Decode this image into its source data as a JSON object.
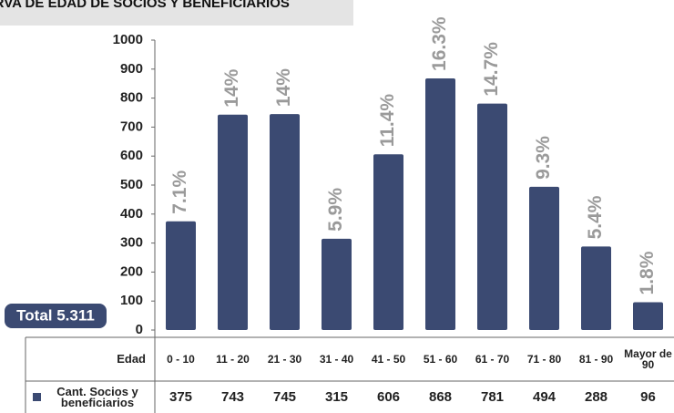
{
  "chart_data": {
    "type": "bar",
    "title": "CURVA DE EDAD DE SOCIOS Y BENEFICIARIOS",
    "categories": [
      "0 - 10",
      "11 - 20",
      "21 - 30",
      "31 - 40",
      "41 - 50",
      "51 - 60",
      "61 - 70",
      "71 - 80",
      "81 - 90",
      "Mayor de 90"
    ],
    "values": [
      375,
      743,
      745,
      315,
      606,
      868,
      781,
      494,
      288,
      96
    ],
    "percent_labels": [
      "7.1%",
      "14%",
      "14%",
      "5.9%",
      "11.4%",
      "16.3%",
      "14.7%",
      "9.3%",
      "5.4%",
      "1.8%"
    ],
    "series_name": "Cant. Socios y beneficiarios",
    "category_header": "Edad",
    "total_label": "Total 5.311",
    "color": "#3b4a72",
    "ylim": [
      0,
      1000
    ],
    "yticks": [
      0,
      100,
      200,
      300,
      400,
      500,
      600,
      700,
      800,
      900,
      1000
    ]
  }
}
